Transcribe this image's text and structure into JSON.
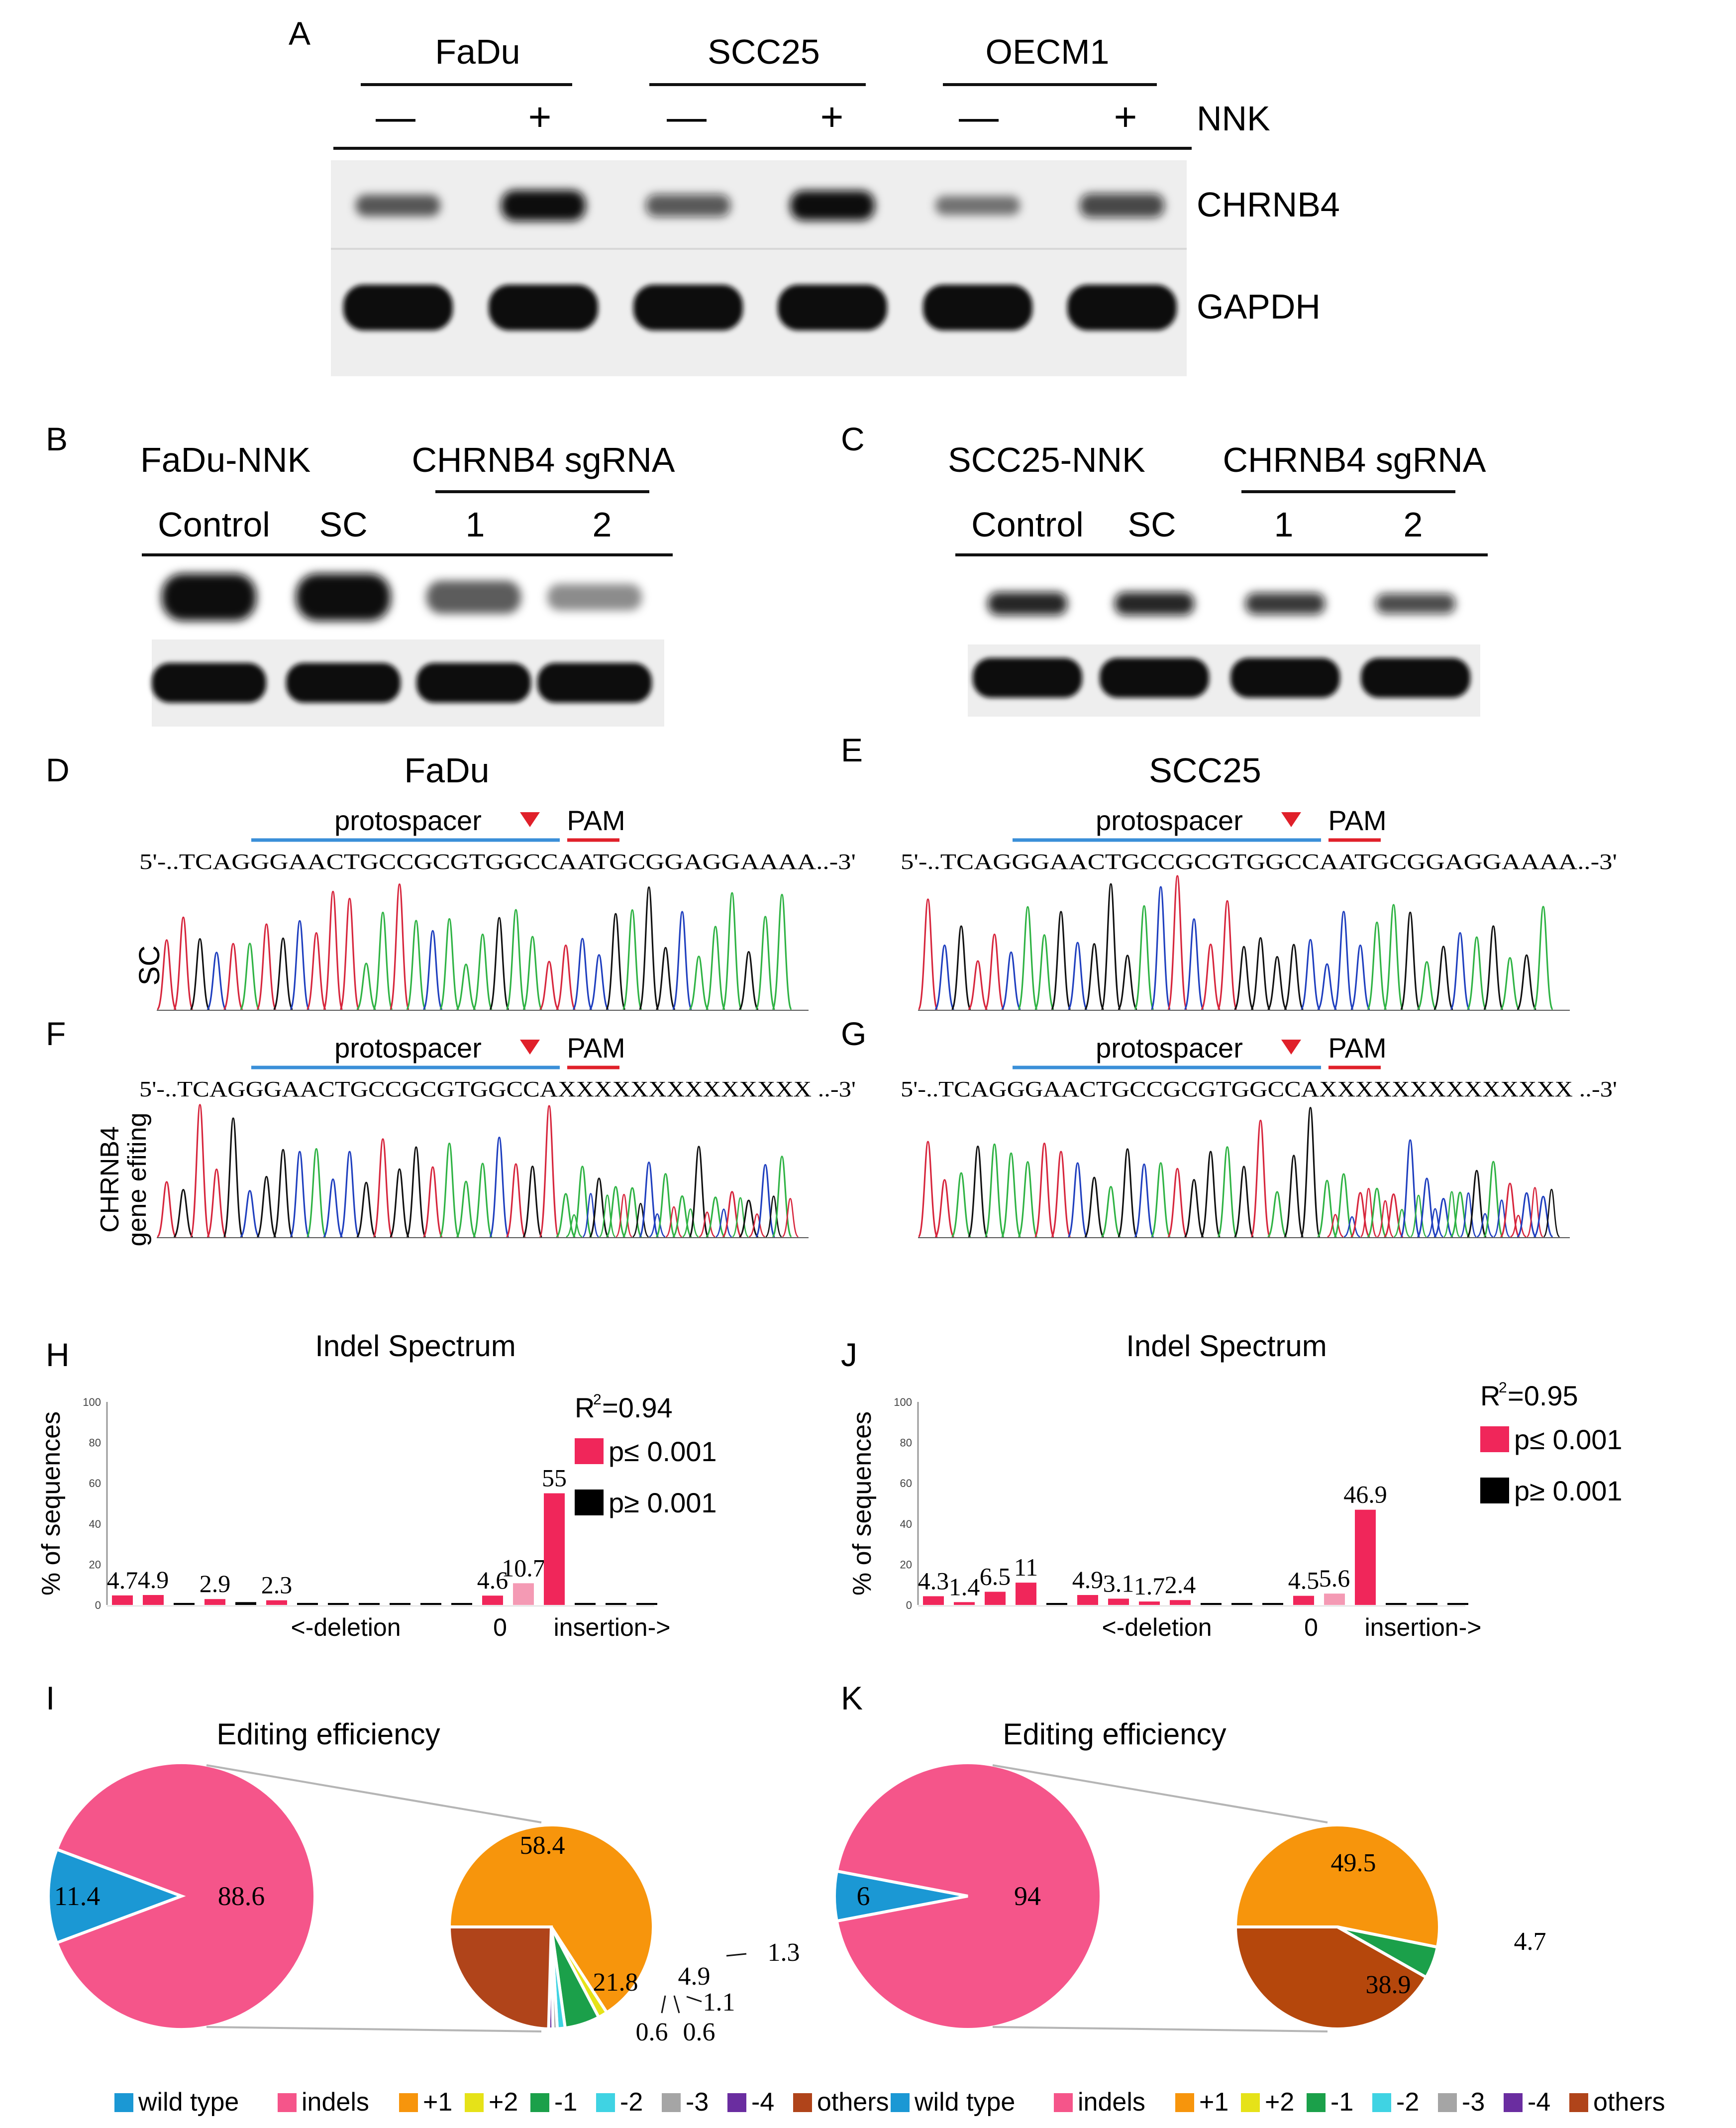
{
  "panel_letters": {
    "A": "A",
    "B": "B",
    "C": "C",
    "D": "D",
    "E": "E",
    "F": "F",
    "G": "G",
    "H": "H",
    "J": "J",
    "I": "I",
    "K": "K"
  },
  "panelA": {
    "cell_lines": [
      "FaDu",
      "SCC25",
      "OECM1"
    ],
    "treatment_signs": [
      "—",
      "+",
      "—",
      "+",
      "—",
      "+"
    ],
    "treatment_label": "NNK",
    "rows": [
      "CHRNB4",
      "GAPDH"
    ],
    "band_intensity_chrnb4": [
      0.45,
      1.0,
      0.5,
      0.95,
      0.3,
      0.6
    ],
    "band_intensity_gapdh": [
      1,
      1,
      1,
      1,
      1,
      1
    ]
  },
  "panelB": {
    "title": "FaDu-NNK",
    "group": "CHRNB4 sgRNA",
    "lanes": [
      "Control",
      "SC",
      "1",
      "2"
    ],
    "band_intensity_top": [
      1.0,
      1.0,
      0.45,
      0.2
    ],
    "band_intensity_bottom": [
      1,
      1,
      1,
      1
    ]
  },
  "panelC": {
    "title": "SCC25-NNK",
    "group": "CHRNB4 sgRNA",
    "lanes": [
      "Control",
      "SC",
      "1",
      "2"
    ],
    "band_intensity_top": [
      0.8,
      0.8,
      0.7,
      0.6
    ],
    "band_intensity_bottom": [
      1,
      1,
      1,
      1
    ]
  },
  "seq": {
    "col_titles": [
      "FaDu",
      "SCC25"
    ],
    "protospacer": "protospacer",
    "pam": "PAM",
    "seq_sc": "5'-..TCAGGGAACTGCCGCGTGGCCAATGCGGAGGAAAA..-3'",
    "seq_edit": "5'-..TCAGGGAACTGCCGCGTGGCCAXXXXXXXXXXXXXX ..-3'",
    "row_label_sc": "SC",
    "row_label_edit_1": "CHRNB4",
    "row_label_edit_2": "gene efiting",
    "trace_colors": [
      "#d7263d",
      "#1f3fbf",
      "#111111",
      "#2fb344"
    ]
  },
  "chart_data": [
    {
      "type": "bar",
      "panel": "H",
      "title": "Indel Spectrum",
      "ylabel": "% of sequences",
      "xlabel_left": "<-deletion",
      "xlabel_zero": "0",
      "xlabel_right": "insertion->",
      "ylim": [
        0,
        100
      ],
      "yticks": [
        "0",
        "20",
        "40",
        "60",
        "80",
        "100"
      ],
      "r2": "=0.94",
      "r2_base": "R",
      "r2_sup": "2",
      "legend": [
        {
          "label": "p≤ 0.001",
          "color": "#f0265a"
        },
        {
          "label": "p≥ 0.001",
          "color": "#000000"
        }
      ],
      "values": [
        4.7,
        4.9,
        1,
        2.9,
        1.4,
        2.3,
        1,
        0.6,
        0.6,
        0.5,
        0.5,
        0.5,
        4.6,
        10.7,
        55,
        1,
        0.5,
        0.5
      ],
      "colors": [
        "#f0265a",
        "#f0265a",
        "#000000",
        "#f0265a",
        "#000000",
        "#f0265a",
        "#000000",
        "#000000",
        "#000000",
        "#000000",
        "#000000",
        "#000000",
        "#f0265a",
        "#f49ab4",
        "#f0265a",
        "#000000",
        "#000000",
        "#000000"
      ],
      "labels": [
        "4.7",
        "4.9",
        "",
        "2.9",
        "",
        "2.3",
        "",
        "",
        "",
        "",
        "",
        "",
        "4.6",
        "10.7",
        "55",
        "",
        "",
        ""
      ]
    },
    {
      "type": "bar",
      "panel": "J",
      "title": "Indel Spectrum",
      "ylabel": "% of sequences",
      "xlabel_left": "<-deletion",
      "xlabel_zero": "0",
      "xlabel_right": "insertion->",
      "ylim": [
        0,
        100
      ],
      "yticks": [
        "0",
        "20",
        "40",
        "60",
        "80",
        "100"
      ],
      "r2": "=0.95",
      "r2_base": "R",
      "r2_sup": "2",
      "legend": [
        {
          "label": "p≤ 0.001",
          "color": "#f0265a"
        },
        {
          "label": "p≥ 0.001",
          "color": "#000000"
        }
      ],
      "values": [
        4.3,
        1.4,
        6.5,
        11,
        0.5,
        4.9,
        3.1,
        1.7,
        2.4,
        0.5,
        0.5,
        0.5,
        4.5,
        5.6,
        46.9,
        0.5,
        0.5,
        0.5
      ],
      "colors": [
        "#f0265a",
        "#f0265a",
        "#f0265a",
        "#f0265a",
        "#000000",
        "#f0265a",
        "#f0265a",
        "#f0265a",
        "#f0265a",
        "#000000",
        "#000000",
        "#000000",
        "#f0265a",
        "#f49ab4",
        "#f0265a",
        "#000000",
        "#000000",
        "#000000"
      ],
      "labels": [
        "4.3",
        "1.4",
        "6.5",
        "11",
        "",
        "4.9",
        "3.1",
        "1.7",
        "2.4",
        "",
        "",
        "",
        "4.5",
        "5.6",
        "46.9",
        "",
        "",
        ""
      ]
    },
    {
      "type": "pie",
      "panel": "I",
      "title": "Editing efficiency",
      "main": [
        {
          "label": "11.4",
          "value": 11.4,
          "color": "#1b98d4",
          "name": "wild type"
        },
        {
          "label": "88.6",
          "value": 88.6,
          "color": "#f5558a",
          "name": "indels"
        }
      ],
      "detail": [
        {
          "label": "58.4",
          "value": 58.4,
          "color": "#f7950c",
          "name": "+1"
        },
        {
          "label": "1.3",
          "value": 1.3,
          "color": "#e6e218",
          "name": "+2"
        },
        {
          "label": "4.9",
          "value": 4.9,
          "color": "#1ba04a",
          "name": "-1"
        },
        {
          "label": "1.1",
          "value": 1.1,
          "color": "#3fd3e3",
          "name": "-2"
        },
        {
          "label": "0.6",
          "value": 0.6,
          "color": "#a5a5a5",
          "name": "-3"
        },
        {
          "label": "0.6",
          "value": 0.6,
          "color": "#6a2da0",
          "name": "-4"
        },
        {
          "label": "21.8",
          "value": 21.8,
          "color": "#b0441a",
          "name": "others"
        }
      ]
    },
    {
      "type": "pie",
      "panel": "K",
      "title": "Editing efficiency",
      "main": [
        {
          "label": "6",
          "value": 6,
          "color": "#1b98d4",
          "name": "wild type"
        },
        {
          "label": "94",
          "value": 94,
          "color": "#f5558a",
          "name": "indels"
        }
      ],
      "detail": [
        {
          "label": "49.5",
          "value": 49.5,
          "color": "#f7950c",
          "name": "+1"
        },
        {
          "label": "4.7",
          "value": 4.7,
          "color": "#1ba04a",
          "name": "-1"
        },
        {
          "label": "38.9",
          "value": 38.9,
          "color": "#b5470c",
          "name": "others"
        }
      ]
    }
  ],
  "legend_items": [
    {
      "label": "wild type",
      "color": "#1b98d4"
    },
    {
      "label": "indels",
      "color": "#f5558a"
    },
    {
      "label": "+1",
      "color": "#f7950c"
    },
    {
      "label": "+2",
      "color": "#e6e218"
    },
    {
      "label": "-1",
      "color": "#1ba04a"
    },
    {
      "label": "-2",
      "color": "#3fd3e3"
    },
    {
      "label": "-3",
      "color": "#a5a5a5"
    },
    {
      "label": "-4",
      "color": "#6a2da0"
    },
    {
      "label": "others",
      "color": "#b0441a"
    }
  ]
}
